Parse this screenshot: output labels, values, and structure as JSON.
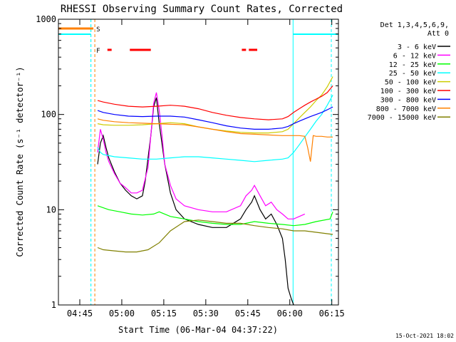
{
  "chart_data": {
    "type": "line",
    "title": "RHESSI Observing Summary Count Rates, Corrected",
    "xlabel": "Start Time (06-Mar-04 04:37:22)",
    "ylabel": "Corrected Count Rate (s⁻¹ detector⁻¹)",
    "x_unit": "minutes since 04:37:22",
    "xlim": [
      0,
      100
    ],
    "ylim": [
      1,
      1000
    ],
    "y_scale": "log",
    "x_ticks": [
      {
        "label": "04:45",
        "value": 7.63
      },
      {
        "label": "05:00",
        "value": 22.63
      },
      {
        "label": "05:15",
        "value": 37.63
      },
      {
        "label": "05:30",
        "value": 52.63
      },
      {
        "label": "05:45",
        "value": 67.63
      },
      {
        "label": "06:00",
        "value": 82.63
      },
      {
        "label": "06:15",
        "value": 97.63
      }
    ],
    "y_ticks": [
      {
        "label": "1",
        "value": 1
      },
      {
        "label": "10",
        "value": 10
      },
      {
        "label": "100",
        "value": 100
      },
      {
        "label": "1000",
        "value": 1000
      }
    ],
    "legend_header": [
      "Det 1,3,4,5,6,9,",
      "Att 0"
    ],
    "legend_position": "right",
    "footer_date": "15-Oct-2021 18:02",
    "flag_labels": {
      "saa": "S",
      "flare": "F"
    },
    "night_intervals": [
      [
        0,
        11.6
      ],
      [
        83.8,
        100
      ]
    ],
    "saa_markers": {
      "lines": [
        11.6,
        13.0
      ],
      "bar": [
        0,
        13.0
      ],
      "value": 800
    },
    "flare_bars": [
      [
        17.5,
        19.0
      ],
      [
        25.5,
        33.0
      ],
      [
        65.5,
        67.0
      ],
      [
        68.0,
        71.0
      ]
    ],
    "series": [
      {
        "name": "3 - 6 keV",
        "color": "#000000",
        "x": [
          14,
          15,
          16,
          17,
          18,
          20,
          22,
          24,
          26,
          28,
          30,
          31,
          32,
          33,
          34,
          35,
          36,
          38,
          40,
          42,
          45,
          50,
          55,
          60,
          65,
          67,
          69,
          70,
          72,
          74,
          76,
          78,
          80,
          81,
          82,
          83,
          84
        ],
        "y": [
          30,
          50,
          60,
          45,
          35,
          25,
          19,
          16,
          14,
          13,
          14,
          20,
          35,
          60,
          120,
          150,
          80,
          30,
          15,
          10,
          8,
          7,
          6.5,
          6.5,
          8,
          10,
          12,
          14,
          10,
          8,
          9,
          7,
          5,
          3,
          1.5,
          1.2,
          1.0
        ]
      },
      {
        "name": "6 - 12 keV",
        "color": "#ff00ff",
        "x": [
          14,
          15,
          16,
          17,
          18,
          20,
          22,
          24,
          26,
          28,
          30,
          32,
          33,
          34,
          35,
          36,
          37,
          38,
          40,
          42,
          45,
          50,
          55,
          60,
          65,
          67,
          69,
          70,
          72,
          74,
          76,
          78,
          80,
          82,
          84,
          86,
          88
        ],
        "y": [
          40,
          70,
          55,
          40,
          32,
          24,
          19,
          17,
          15,
          15,
          16,
          28,
          60,
          130,
          170,
          110,
          60,
          30,
          18,
          13,
          11,
          10,
          9.5,
          9.5,
          11,
          14,
          16,
          18,
          14,
          11,
          12,
          10,
          9,
          8,
          8,
          8.5,
          9
        ]
      },
      {
        "name": "12 - 25 keV",
        "color": "#00ff00",
        "x": [
          14,
          18,
          22,
          26,
          30,
          34,
          36,
          40,
          45,
          50,
          55,
          60,
          65,
          70,
          75,
          80,
          84,
          88,
          92,
          97,
          98
        ],
        "y": [
          11,
          10,
          9.5,
          9,
          8.8,
          9,
          9.5,
          8.5,
          8,
          7.5,
          7.2,
          7,
          7,
          7.5,
          7.2,
          7,
          6.8,
          7,
          7.5,
          8,
          9.5
        ]
      },
      {
        "name": "25 - 50 keV",
        "color": "#00ffff",
        "x": [
          14,
          15,
          16,
          18,
          20,
          25,
          30,
          35,
          40,
          45,
          50,
          55,
          60,
          65,
          70,
          75,
          80,
          82,
          84,
          86,
          88,
          90,
          92,
          94,
          96,
          98
        ],
        "y": [
          45,
          40,
          38,
          37,
          36,
          35,
          34,
          34,
          35,
          36,
          36,
          35,
          34,
          33,
          32,
          33,
          34,
          35,
          40,
          48,
          58,
          70,
          85,
          100,
          125,
          160
        ]
      },
      {
        "name": "50 - 100 keV",
        "color": "#cccc00",
        "x": [
          14,
          16,
          20,
          25,
          30,
          35,
          40,
          45,
          50,
          55,
          60,
          65,
          70,
          75,
          80,
          82,
          84,
          86,
          88,
          90,
          92,
          94,
          96,
          98
        ],
        "y": [
          80,
          78,
          77,
          77,
          78,
          80,
          82,
          80,
          74,
          70,
          67,
          65,
          64,
          64,
          66,
          70,
          80,
          92,
          105,
          120,
          140,
          160,
          195,
          250
        ]
      },
      {
        "name": "100 - 300 keV",
        "color": "#ff0000",
        "x": [
          14,
          16,
          20,
          25,
          30,
          35,
          40,
          45,
          50,
          55,
          60,
          65,
          70,
          75,
          80,
          82,
          84,
          86,
          88,
          90,
          92,
          94,
          96,
          98
        ],
        "y": [
          140,
          135,
          128,
          122,
          120,
          122,
          125,
          122,
          115,
          105,
          98,
          93,
          90,
          88,
          90,
          95,
          105,
          115,
          125,
          135,
          145,
          155,
          170,
          200
        ]
      },
      {
        "name": "300 - 800 keV",
        "color": "#0000ff",
        "x": [
          14,
          16,
          20,
          25,
          30,
          35,
          40,
          45,
          50,
          55,
          60,
          65,
          70,
          75,
          80,
          82,
          84,
          86,
          88,
          90,
          92,
          94,
          96,
          98
        ],
        "y": [
          110,
          105,
          100,
          96,
          95,
          96,
          96,
          94,
          88,
          82,
          76,
          72,
          70,
          70,
          72,
          75,
          80,
          85,
          90,
          95,
          100,
          105,
          112,
          120
        ]
      },
      {
        "name": "800 - 7000 keV",
        "color": "#ff8000",
        "x": [
          14,
          16,
          20,
          25,
          30,
          35,
          40,
          45,
          50,
          55,
          60,
          65,
          70,
          75,
          80,
          84,
          86,
          88,
          89,
          90,
          91,
          92,
          94,
          96,
          98
        ],
        "y": [
          90,
          87,
          84,
          82,
          81,
          80,
          79,
          78,
          74,
          70,
          66,
          63,
          62,
          61,
          60,
          60,
          60,
          59,
          45,
          32,
          60,
          59,
          59,
          58,
          58
        ]
      },
      {
        "name": "7000 - 15000 keV",
        "color": "#808000",
        "x": [
          14,
          16,
          20,
          24,
          28,
          32,
          36,
          40,
          45,
          50,
          55,
          60,
          65,
          70,
          75,
          80,
          84,
          88,
          92,
          96,
          98
        ],
        "y": [
          4,
          3.8,
          3.7,
          3.6,
          3.6,
          3.8,
          4.5,
          6,
          7.5,
          7.8,
          7.5,
          7.2,
          7.2,
          6.8,
          6.5,
          6.3,
          6,
          6,
          5.8,
          5.6,
          5.5
        ]
      }
    ]
  }
}
